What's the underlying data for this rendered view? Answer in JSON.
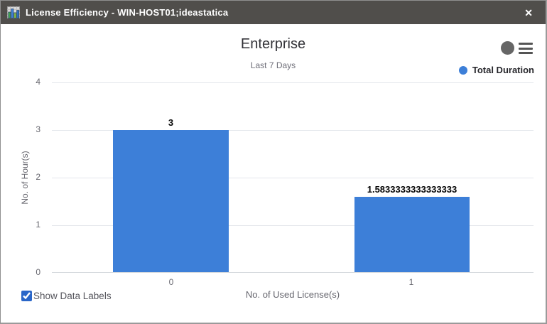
{
  "window": {
    "title": "License Efficiency - WIN-HOST01;ideastatica",
    "close_glyph": "✕"
  },
  "toolbar": {
    "icons": [
      "record-circle",
      "hamburger-menu"
    ]
  },
  "chart_data": {
    "type": "bar",
    "title": "Enterprise",
    "subtitle": "Last 7 Days",
    "categories": [
      "0",
      "1"
    ],
    "series": [
      {
        "name": "Total Duration",
        "color": "#3d7fd8",
        "values": [
          3,
          1.5833333333333333
        ]
      }
    ],
    "data_labels": [
      "3",
      "1.5833333333333333"
    ],
    "xlabel": "No. of Used License(s)",
    "ylabel": "No. of Hour(s)",
    "ylim": [
      0,
      4
    ],
    "yticks": [
      "0",
      "1",
      "2",
      "3",
      "4"
    ],
    "grid": true,
    "legend_position": "top-right",
    "data_labels_visible": true
  },
  "colors": {
    "bar": "#3d7fd8",
    "titlebar": "#504e4b",
    "gridline": "#e4e7ec"
  },
  "footer": {
    "show_data_labels_label": "Show Data Labels",
    "checked": true
  }
}
